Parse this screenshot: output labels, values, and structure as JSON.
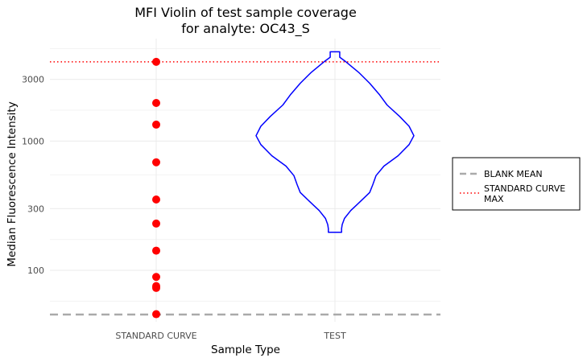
{
  "chart_data": {
    "type": "violin",
    "title_lines": [
      "MFI Violin of test sample coverage",
      "for analyte: OC43_S"
    ],
    "xlabel": "Sample Type",
    "ylabel": "Median Fluorescence Intensity",
    "y_scale": "log10",
    "ylim": [
      40,
      6200
    ],
    "y_ticks": [
      100,
      300,
      1000,
      3000
    ],
    "y_tick_labels": [
      "100",
      "300",
      "1000",
      "3000"
    ],
    "categories": [
      "STANDARD CURVE",
      "TEST"
    ],
    "grid": true,
    "standard_curve_points": {
      "color": "#ff0000",
      "values": [
        45.8,
        73.1,
        75.5,
        88.9,
        142,
        230,
        353,
        685,
        1340,
        1970,
        4100
      ]
    },
    "test_violin": {
      "color": "#0000ff",
      "y_min": 197,
      "y_max": 4900,
      "profile": [
        {
          "y": 197,
          "half_width": 0.042
        },
        {
          "y": 210,
          "half_width": 0.042
        },
        {
          "y": 226,
          "half_width": 0.046
        },
        {
          "y": 252,
          "half_width": 0.06
        },
        {
          "y": 290,
          "half_width": 0.1
        },
        {
          "y": 340,
          "half_width": 0.16
        },
        {
          "y": 400,
          "half_width": 0.22
        },
        {
          "y": 460,
          "half_width": 0.24
        },
        {
          "y": 540,
          "half_width": 0.26
        },
        {
          "y": 640,
          "half_width": 0.31
        },
        {
          "y": 770,
          "half_width": 0.4
        },
        {
          "y": 940,
          "half_width": 0.47
        },
        {
          "y": 1100,
          "half_width": 0.5
        },
        {
          "y": 1300,
          "half_width": 0.47
        },
        {
          "y": 1550,
          "half_width": 0.41
        },
        {
          "y": 1900,
          "half_width": 0.33
        },
        {
          "y": 2300,
          "half_width": 0.28
        },
        {
          "y": 2800,
          "half_width": 0.22
        },
        {
          "y": 3400,
          "half_width": 0.15
        },
        {
          "y": 4100,
          "half_width": 0.07
        },
        {
          "y": 4450,
          "half_width": 0.03
        },
        {
          "y": 4900,
          "half_width": 0.03
        }
      ]
    },
    "reference_lines": [
      {
        "name": "BLANK MEAN",
        "y": 45.5,
        "color": "#aaaaaa",
        "style": "dashed"
      },
      {
        "name": "STANDARD CURVE MAX",
        "y": 4100,
        "color": "#ff0000",
        "style": "dotted"
      }
    ],
    "legend": {
      "placement": "right",
      "entries": [
        {
          "label_lines": [
            "BLANK MEAN"
          ],
          "color": "#aaaaaa",
          "style": "dashed"
        },
        {
          "label_lines": [
            "STANDARD CURVE",
            "MAX"
          ],
          "color": "#ff0000",
          "style": "dotted"
        }
      ]
    }
  }
}
